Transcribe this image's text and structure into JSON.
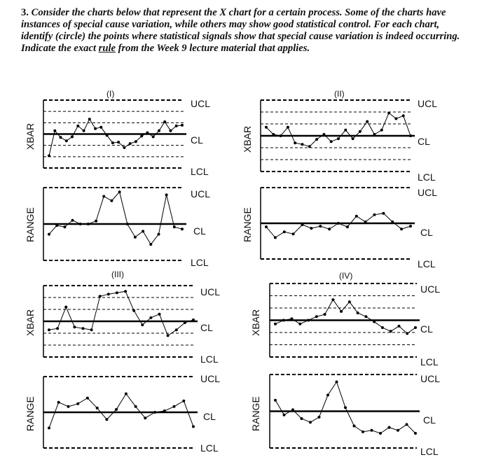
{
  "question": {
    "number": "3.",
    "text_before": " Consider the charts below that represent the X chart for a certain process. Some of the charts have instances of special cause variation, while others may show good statistical control. For each chart, identify (circle) the points where statistical signals show that special cause variation is indeed occurring. Indicate the exact ",
    "rule_word": "rule",
    "text_after": " from the Week 9 lecture material that applies."
  },
  "labels": {
    "ucl": "UCL",
    "cl": "CL",
    "lcl": "LCL",
    "xbar": "XBAR",
    "range": "RANGE"
  },
  "charts": [
    {
      "title": "(I)",
      "xbar": [
        0.18,
        0.55,
        0.45,
        0.4,
        0.46,
        0.62,
        0.55,
        0.72,
        0.58,
        0.6,
        0.48,
        0.37,
        0.38,
        0.3,
        0.36,
        0.39,
        0.47,
        0.52,
        0.46,
        0.55,
        0.68,
        0.55,
        0.62,
        0.63
      ],
      "range": [
        0.36,
        0.48,
        0.46,
        0.55,
        0.5,
        0.5,
        0.54,
        0.88,
        0.82,
        0.94,
        0.5,
        0.32,
        0.4,
        0.22,
        0.36,
        0.9,
        0.46,
        0.43
      ]
    },
    {
      "title": "(II)",
      "xbar": [
        0.62,
        0.52,
        0.5,
        0.62,
        0.4,
        0.38,
        0.35,
        0.45,
        0.52,
        0.42,
        0.46,
        0.58,
        0.46,
        0.56,
        0.7,
        0.52,
        0.58,
        0.82,
        0.74,
        0.78,
        0.5
      ],
      "range": [
        0.45,
        0.3,
        0.38,
        0.35,
        0.48,
        0.43,
        0.46,
        0.42,
        0.5,
        0.45,
        0.6,
        0.52,
        0.62,
        0.64,
        0.52,
        0.42,
        0.46
      ]
    },
    {
      "title": "(III)",
      "xbar": [
        0.38,
        0.4,
        0.7,
        0.42,
        0.4,
        0.38,
        0.85,
        0.88,
        0.9,
        0.92,
        0.65,
        0.45,
        0.55,
        0.6,
        0.3,
        0.38,
        0.48,
        0.52
      ],
      "range": [
        0.28,
        0.64,
        0.58,
        0.62,
        0.7,
        0.56,
        0.4,
        0.54,
        0.76,
        0.58,
        0.42,
        0.5,
        0.52,
        0.58,
        0.66,
        0.3
      ]
    },
    {
      "title": "(IV)",
      "xbar": [
        0.45,
        0.5,
        0.52,
        0.45,
        0.5,
        0.55,
        0.58,
        0.78,
        0.62,
        0.75,
        0.6,
        0.55,
        0.48,
        0.4,
        0.35,
        0.42,
        0.32,
        0.4
      ],
      "range": [
        0.65,
        0.45,
        0.52,
        0.4,
        0.35,
        0.42,
        0.72,
        0.9,
        0.55,
        0.3,
        0.22,
        0.24,
        0.2,
        0.28,
        0.24,
        0.32,
        0.2
      ]
    }
  ]
}
